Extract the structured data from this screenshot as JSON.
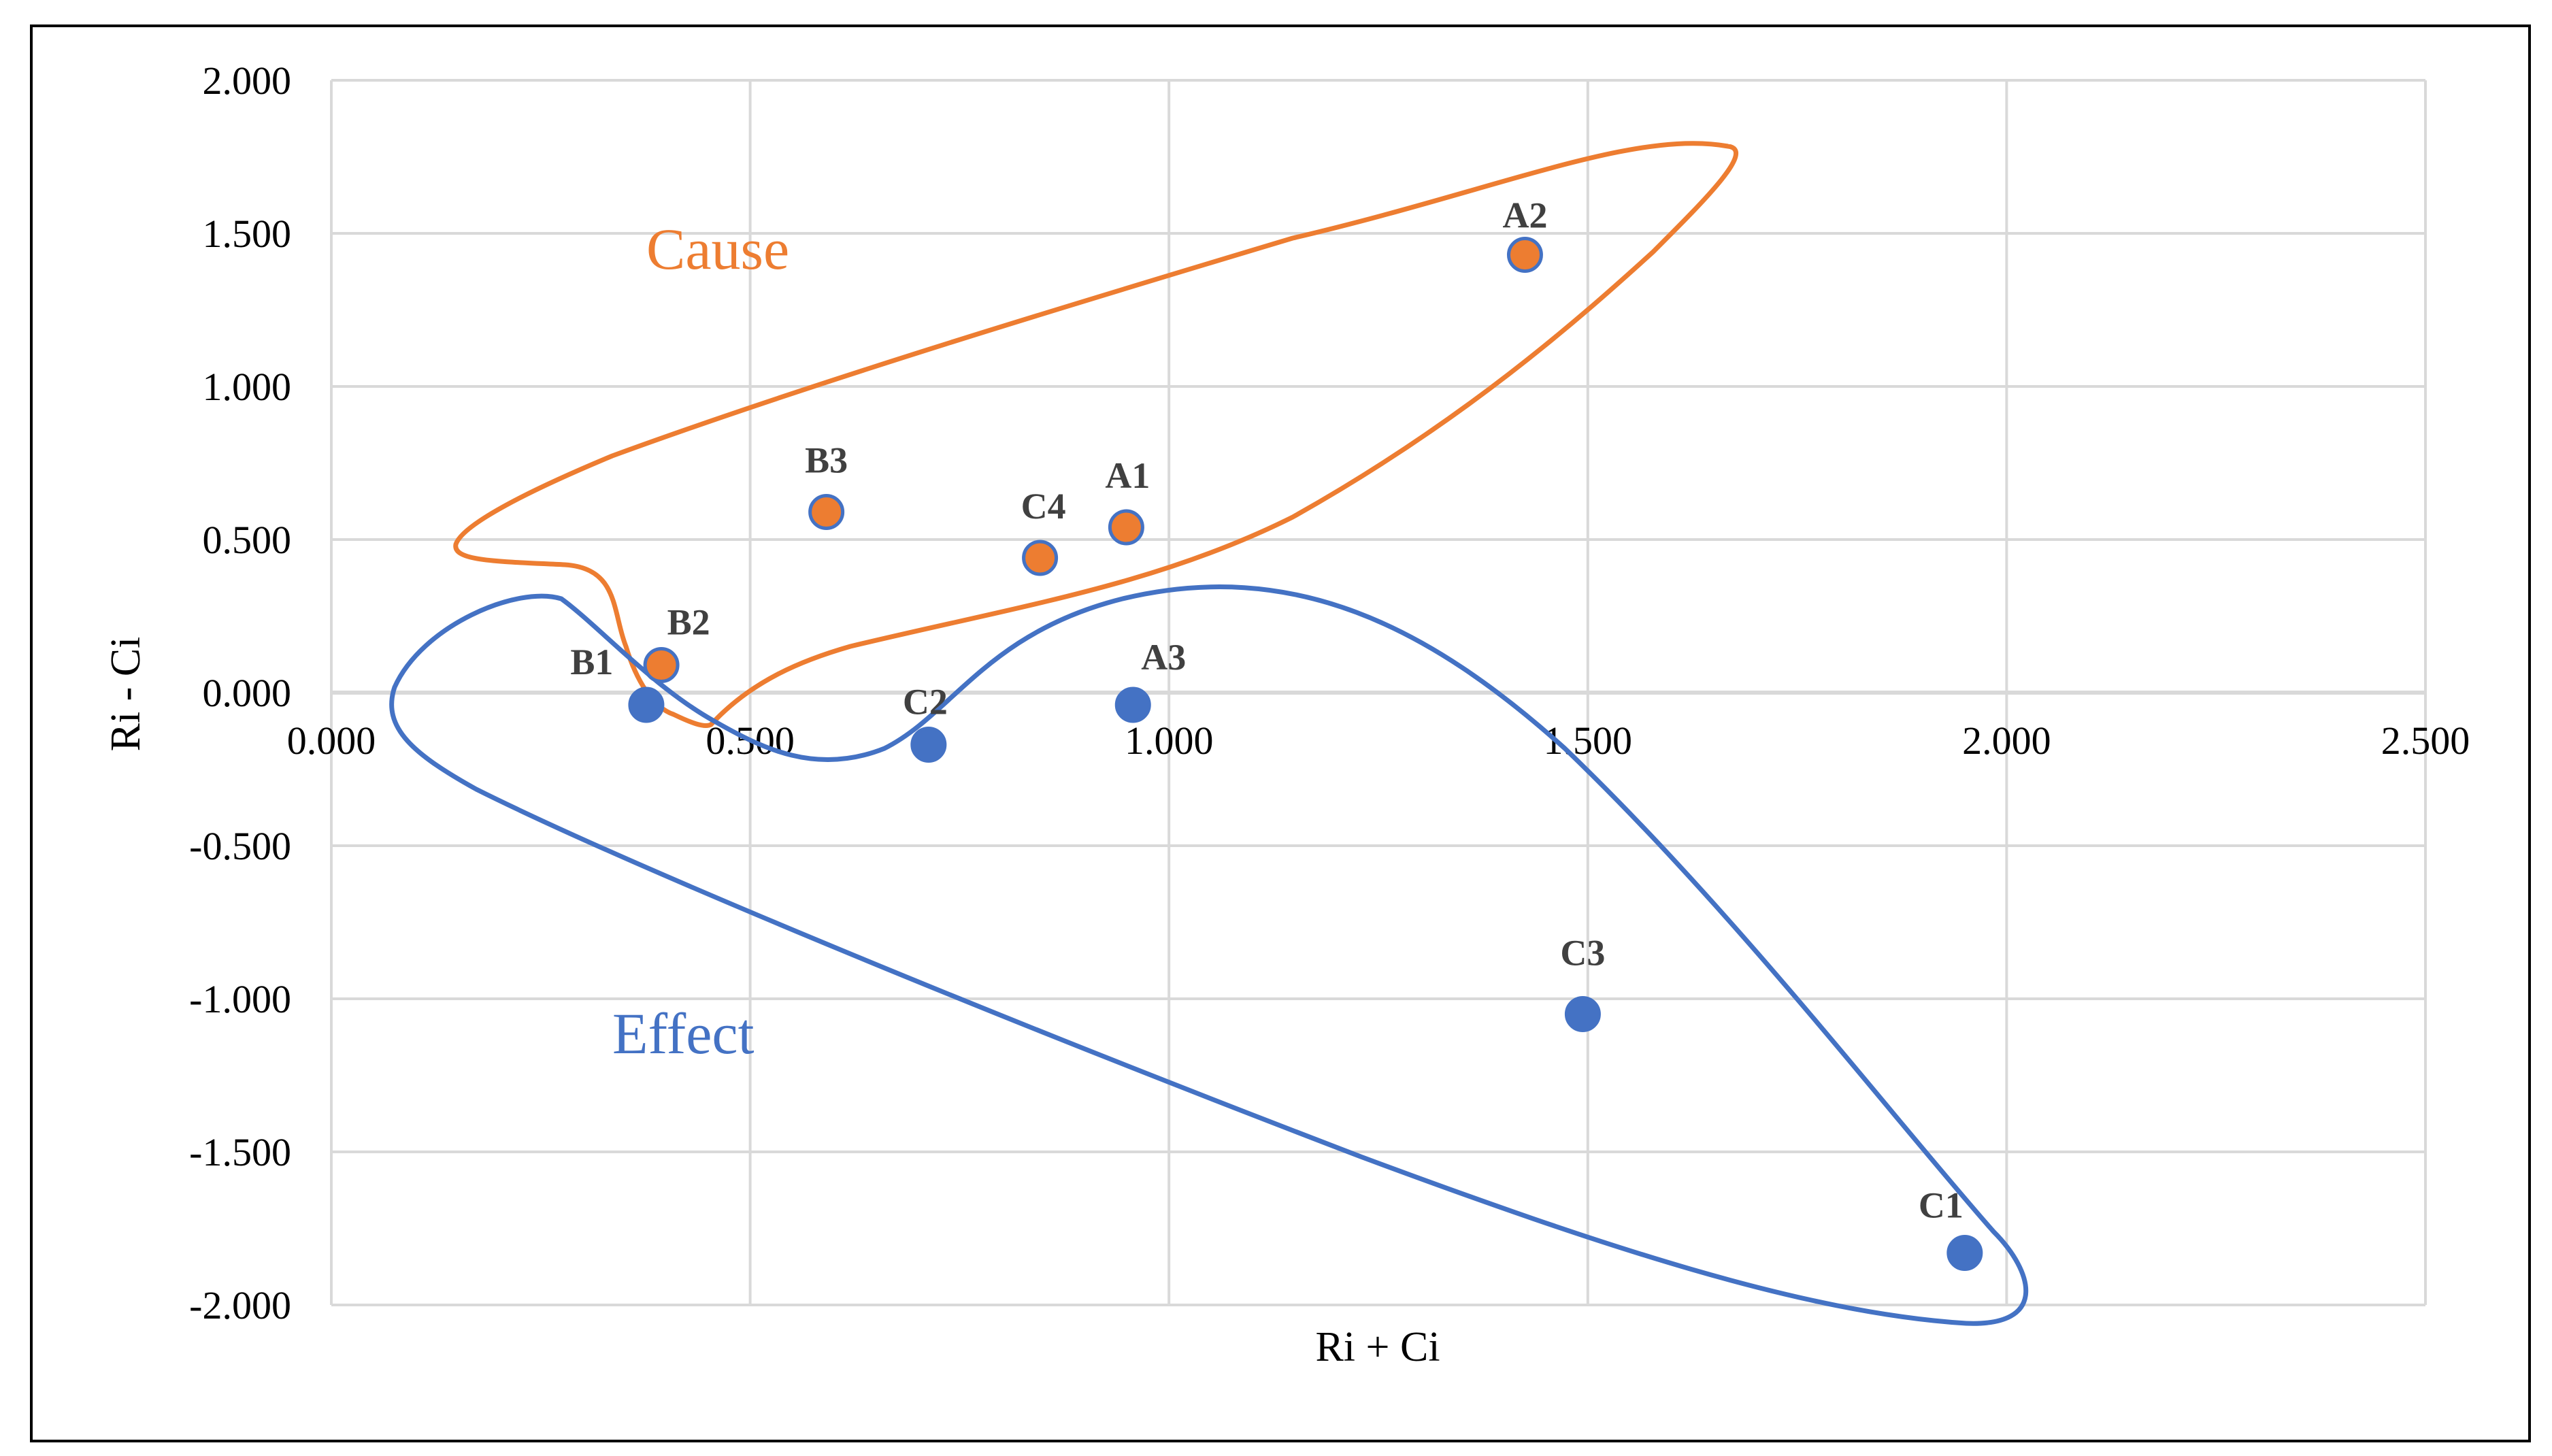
{
  "chart_data": {
    "type": "scatter",
    "title": "",
    "xlabel": "Ri + Ci",
    "ylabel": "Ri - Ci",
    "xlim": [
      0,
      2.5
    ],
    "ylim": [
      -2,
      2
    ],
    "x_ticks": [
      "0.000",
      "0.500",
      "1.000",
      "1.500",
      "2.000",
      "2.500"
    ],
    "y_ticks": [
      "2.000",
      "1.500",
      "1.000",
      "0.500",
      "0.000",
      "-0.500",
      "-1.000",
      "-1.500",
      "-2.000"
    ],
    "grid": true,
    "series": [
      {
        "name": "Cause",
        "color": "#ed7d31",
        "points": [
          {
            "label": "A2",
            "x": 1.425,
            "y": 1.43
          },
          {
            "label": "B3",
            "x": 0.591,
            "y": 0.59
          },
          {
            "label": "C4",
            "x": 0.846,
            "y": 0.44
          },
          {
            "label": "A1",
            "x": 0.949,
            "y": 0.54
          },
          {
            "label": "B2",
            "x": 0.394,
            "y": 0.09
          }
        ]
      },
      {
        "name": "Effect",
        "color": "#4472c4",
        "points": [
          {
            "label": "B1",
            "x": 0.376,
            "y": -0.04
          },
          {
            "label": "C2",
            "x": 0.713,
            "y": -0.17
          },
          {
            "label": "A3",
            "x": 0.957,
            "y": -0.04
          },
          {
            "label": "C3",
            "x": 1.494,
            "y": -1.05
          },
          {
            "label": "C1",
            "x": 1.95,
            "y": -1.83
          }
        ]
      }
    ],
    "annotations": [
      {
        "text": "Cause",
        "color": "#ed7d31"
      },
      {
        "text": "Effect",
        "color": "#4472c4"
      }
    ]
  }
}
